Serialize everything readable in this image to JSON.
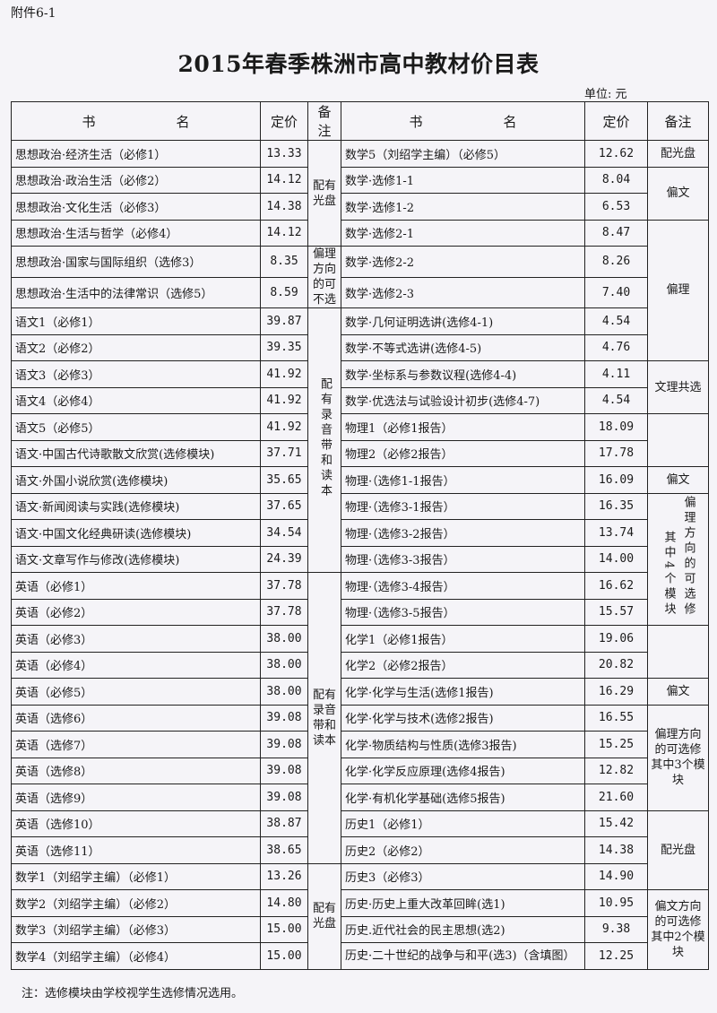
{
  "attachment_label": "附件6-1",
  "title": "2015年春季株洲市高中教材价目表",
  "unit": "单位: 元",
  "headers": {
    "name": "书　　　　　　名",
    "price": "定价",
    "remark": "备注"
  },
  "rows": [
    {
      "left_name": "思想政治·经济生活（必修1）",
      "left_price": "13.33",
      "right_name": "数学5（刘绍学主编）（必修5）",
      "right_price": "12.62"
    },
    {
      "left_name": "思想政治·政治生活（必修2）",
      "left_price": "14.12",
      "right_name": "数学·选修1-1",
      "right_price": "8.04"
    },
    {
      "left_name": "思想政治·文化生活（必修3）",
      "left_price": "14.38",
      "right_name": "数学·选修1-2",
      "right_price": "6.53"
    },
    {
      "left_name": "思想政治·生活与哲学（必修4）",
      "left_price": "14.12",
      "right_name": "数学·选修2-1",
      "right_price": "8.47"
    },
    {
      "left_name": "思想政治·国家与国际组织（选修3）",
      "left_price": "8.35",
      "right_name": "数学·选修2-2",
      "right_price": "8.26"
    },
    {
      "left_name": "思想政治·生活中的法律常识（选修5）",
      "left_price": "8.59",
      "right_name": "数学·选修2-3",
      "right_price": "7.40"
    },
    {
      "left_name": "语文1（必修1）",
      "left_price": "39.87",
      "right_name": "数学·几何证明选讲(选修4-1)",
      "right_price": "4.54"
    },
    {
      "left_name": "语文2（必修2）",
      "left_price": "39.35",
      "right_name": "数学·不等式选讲(选修4-5)",
      "right_price": "4.76"
    },
    {
      "left_name": "语文3（必修3）",
      "left_price": "41.92",
      "right_name": "数学·坐标系与参数议程(选修4-4)",
      "right_price": "4.11"
    },
    {
      "left_name": "语文4（必修4）",
      "left_price": "41.92",
      "right_name": "数学·优选法与试验设计初步(选修4-7)",
      "right_price": "4.54"
    },
    {
      "left_name": "语文5（必修5）",
      "left_price": "41.92",
      "right_name": "物理1（必修1报告）",
      "right_price": "18.09"
    },
    {
      "left_name": "语文·中国古代诗歌散文欣赏(选修模块)",
      "left_price": "37.71",
      "right_name": "物理2（必修2报告）",
      "right_price": "17.78"
    },
    {
      "left_name": "语文·外国小说欣赏(选修模块)",
      "left_price": "35.65",
      "right_name": "物理·（选修1-1报告）",
      "right_price": "16.09"
    },
    {
      "left_name": "语文·新闻阅读与实践(选修模块)",
      "left_price": "37.65",
      "right_name": "物理·（选修3-1报告）",
      "right_price": "16.35"
    },
    {
      "left_name": "语文·中国文化经典研读(选修模块)",
      "left_price": "34.54",
      "right_name": "物理·（选修3-2报告）",
      "right_price": "13.74"
    },
    {
      "left_name": "语文·文章写作与修改(选修模块)",
      "left_price": "24.39",
      "right_name": "物理·（选修3-3报告）",
      "right_price": "14.00"
    },
    {
      "left_name": "英语（必修1）",
      "left_price": "37.78",
      "right_name": "物理·（选修3-4报告）",
      "right_price": "16.62"
    },
    {
      "left_name": "英语（必修2）",
      "left_price": "37.78",
      "right_name": "物理·（选修3-5报告）",
      "right_price": "15.57"
    },
    {
      "left_name": "英语（必修3）",
      "left_price": "38.00",
      "right_name": "化学1（必修1报告）",
      "right_price": "19.06"
    },
    {
      "left_name": "英语（必修4）",
      "left_price": "38.00",
      "right_name": "化学2（必修2报告）",
      "right_price": "20.82"
    },
    {
      "left_name": "英语（必修5）",
      "left_price": "38.00",
      "right_name": "化学·化学与生活(选修1报告)",
      "right_price": "16.29"
    },
    {
      "left_name": "英语（选修6）",
      "left_price": "39.08",
      "right_name": "化学·化学与技术(选修2报告)",
      "right_price": "16.55"
    },
    {
      "left_name": "英语（选修7）",
      "left_price": "39.08",
      "right_name": "化学·物质结构与性质(选修3报告)",
      "right_price": "15.25"
    },
    {
      "left_name": "英语（选修8）",
      "left_price": "39.08",
      "right_name": "化学·化学反应原理(选修4报告)",
      "right_price": "12.82"
    },
    {
      "left_name": "英语（选修9）",
      "left_price": "39.08",
      "right_name": "化学·有机化学基础(选修5报告)",
      "right_price": "21.60"
    },
    {
      "left_name": "英语（选修10）",
      "left_price": "38.87",
      "right_name": "历史1（必修1）",
      "right_price": "15.42"
    },
    {
      "left_name": "英语（选修11）",
      "left_price": "38.65",
      "right_name": "历史2（必修2）",
      "right_price": "14.38"
    },
    {
      "left_name": "数学1（刘绍学主编）（必修1）",
      "left_price": "13.26",
      "right_name": "历史3（必修3）",
      "right_price": "14.90"
    },
    {
      "left_name": "数学2（刘绍学主编）（必修2）",
      "left_price": "14.80",
      "right_name": "历史·历史上重大改革回眸(选1)",
      "right_price": "10.95"
    },
    {
      "left_name": "数学3（刘绍学主编）（必修3）",
      "left_price": "15.00",
      "right_name": "历史.近代社会的民主思想(选2)",
      "right_price": "9.38"
    },
    {
      "left_name": "数学4（刘绍学主编）（必修4）",
      "left_price": "15.00",
      "right_name": "历史·二十世纪的战争与和平(选3)（含填图）",
      "right_price": "12.25"
    }
  ],
  "left_remarks": [
    {
      "start": 0,
      "span": 4,
      "text": "配有光盘"
    },
    {
      "start": 4,
      "span": 2,
      "text": "偏理方向的可不选"
    },
    {
      "start": 6,
      "span": 10,
      "text": "配有录音带和读本",
      "vertical": true
    },
    {
      "start": 16,
      "span": 11,
      "text": "配有录音带和读本"
    },
    {
      "start": 27,
      "span": 4,
      "text": "配有光盘"
    }
  ],
  "right_remarks": [
    {
      "start": 0,
      "span": 1,
      "text": "配光盘"
    },
    {
      "start": 1,
      "span": 2,
      "text": "偏文"
    },
    {
      "start": 3,
      "span": 5,
      "text": "偏理"
    },
    {
      "start": 8,
      "span": 2,
      "text": "文理共选"
    },
    {
      "start": 10,
      "span": 2,
      "text": ""
    },
    {
      "start": 12,
      "span": 1,
      "text": "偏文"
    },
    {
      "start": 13,
      "span": 5,
      "text": "偏理方向的可选修",
      "text2": "其中4个模块",
      "vertical": true
    },
    {
      "start": 18,
      "span": 2,
      "text": ""
    },
    {
      "start": 20,
      "span": 1,
      "text": "偏文"
    },
    {
      "start": 21,
      "span": 4,
      "text": "偏理方向的可选修其中3个模块"
    },
    {
      "start": 25,
      "span": 3,
      "text": "配光盘"
    },
    {
      "start": 28,
      "span": 3,
      "text": "偏文方向的可选修其中2个模块"
    }
  ],
  "note": "注：选修模块由学校视学生选修情况选用。"
}
